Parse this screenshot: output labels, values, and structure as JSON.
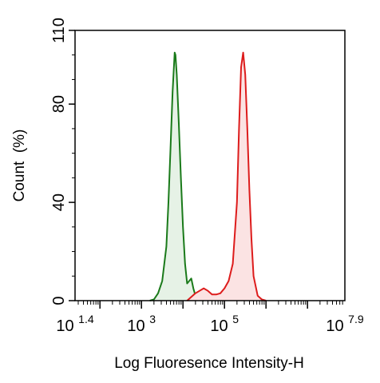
{
  "chart_data": {
    "type": "area",
    "title": "",
    "xlabel": "Log Fluoresence Intensity-H",
    "ylabel": "Count  (%)",
    "x_scale": "log10",
    "xlim": [
      1.4,
      7.9
    ],
    "ylim": [
      0,
      110
    ],
    "x_ticks": [
      {
        "exp": 1.4,
        "base": "10",
        "sup": "1.4"
      },
      {
        "exp": 3,
        "base": "10",
        "sup": "3"
      },
      {
        "exp": 5,
        "base": "10",
        "sup": "5"
      },
      {
        "exp": 7.9,
        "base": "10",
        "sup": "7.9"
      }
    ],
    "y_ticks": [
      0,
      40,
      80,
      110
    ],
    "grid": false,
    "legend": "none",
    "series": [
      {
        "color": "#1a7a1a",
        "fill": "#e6f2e6",
        "x": [
          3.2,
          3.3,
          3.4,
          3.5,
          3.6,
          3.65,
          3.7,
          3.75,
          3.8,
          3.82,
          3.85,
          3.9,
          3.95,
          4.0,
          4.05,
          4.1,
          4.15,
          4.2,
          4.25,
          4.3,
          4.4,
          4.5
        ],
        "y": [
          0,
          0.5,
          3,
          8,
          22,
          40,
          62,
          85,
          101,
          100,
          92,
          72,
          50,
          30,
          15,
          7,
          8,
          9,
          5,
          2,
          0.5,
          0
        ]
      },
      {
        "color": "#dd1c1c",
        "fill": "#fbe3e3",
        "x": [
          4.1,
          4.2,
          4.3,
          4.4,
          4.5,
          4.6,
          4.7,
          4.8,
          4.9,
          5.0,
          5.1,
          5.2,
          5.3,
          5.35,
          5.4,
          5.45,
          5.5,
          5.55,
          5.6,
          5.65,
          5.7,
          5.8,
          5.9,
          6.0
        ],
        "y": [
          0,
          1.5,
          3,
          4,
          5,
          4,
          2.5,
          2.5,
          3,
          5,
          8,
          15,
          40,
          70,
          95,
          101,
          92,
          70,
          45,
          25,
          10,
          2,
          0.5,
          0
        ]
      }
    ]
  }
}
